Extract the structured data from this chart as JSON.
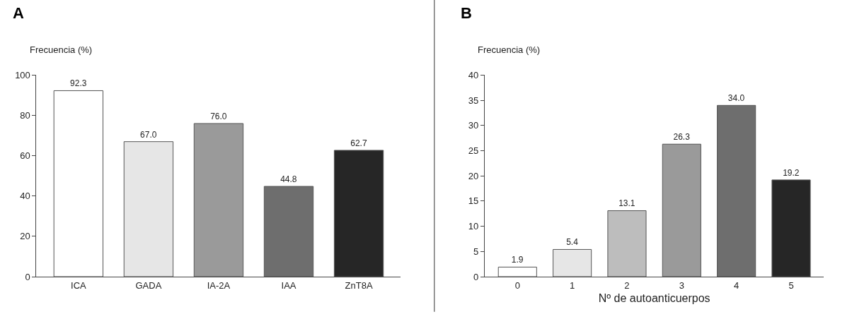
{
  "chart_data": [
    {
      "type": "bar",
      "title": "A",
      "ylabel": "Frecuencia (%)",
      "categories": [
        "ICA",
        "GADA",
        "IA-2A",
        "IAA",
        "ZnT8A"
      ],
      "values": [
        92.3,
        67.0,
        76.0,
        44.8,
        62.7
      ],
      "value_labels": [
        "92.3",
        "67.0",
        "76.0",
        "44.8",
        "62.7"
      ],
      "colors": [
        "#ffffff",
        "#e6e6e6",
        "#9a9a9a",
        "#6e6e6e",
        "#262626"
      ],
      "ylim": [
        0,
        100
      ],
      "yticks": [
        0,
        20,
        40,
        60,
        80,
        100
      ],
      "grid": false,
      "legend": false
    },
    {
      "type": "bar",
      "title": "B",
      "ylabel": "Frecuencia (%)",
      "xlabel": "Nº de autoanticuerpos",
      "categories": [
        "0",
        "1",
        "2",
        "3",
        "4",
        "5"
      ],
      "values": [
        1.9,
        5.4,
        13.1,
        26.3,
        34.0,
        19.2
      ],
      "value_labels": [
        "1.9",
        "5.4",
        "13.1",
        "26.3",
        "34.0",
        "19.2"
      ],
      "colors": [
        "#ffffff",
        "#e6e6e6",
        "#bdbdbd",
        "#9a9a9a",
        "#6e6e6e",
        "#262626"
      ],
      "ylim": [
        0,
        40
      ],
      "yticks": [
        0,
        5,
        10,
        15,
        20,
        25,
        30,
        35,
        40
      ],
      "grid": false,
      "legend": false
    }
  ]
}
